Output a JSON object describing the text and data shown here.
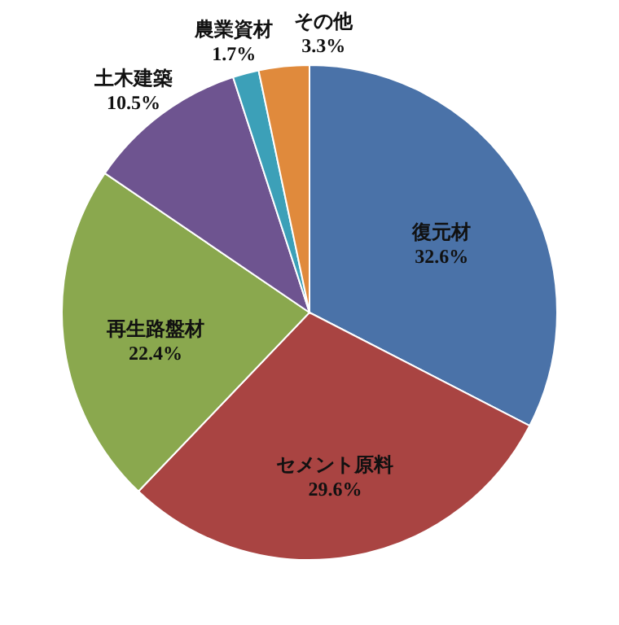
{
  "chart_data": {
    "type": "pie",
    "categories": [
      "復元材",
      "セメント原料",
      "再生路盤材",
      "土木建築",
      "農業資材",
      "その他"
    ],
    "values": [
      32.6,
      29.6,
      22.4,
      10.5,
      1.7,
      3.3
    ],
    "value_labels": [
      "32.6%",
      "29.6%",
      "22.4%",
      "10.5%",
      "1.7%",
      "3.3%"
    ],
    "colors": [
      "#4a72a8",
      "#a94442",
      "#8aa84e",
      "#6e5490",
      "#3ca0b8",
      "#e08a3c"
    ],
    "legend": false
  }
}
